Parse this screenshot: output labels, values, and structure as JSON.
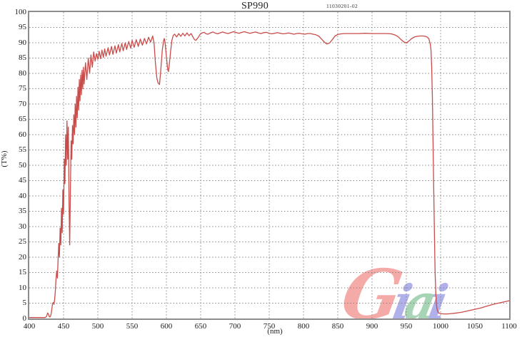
{
  "header": {
    "title": "SP990",
    "serial": "11030201-02"
  },
  "axes": {
    "x": {
      "label": "(nm)",
      "ticks": [
        400,
        450,
        500,
        550,
        600,
        650,
        700,
        750,
        800,
        850,
        900,
        950,
        1000,
        1050,
        1100
      ]
    },
    "y": {
      "label": "(T%)",
      "ticks": [
        0,
        5,
        10,
        15,
        20,
        25,
        30,
        35,
        40,
        45,
        50,
        55,
        60,
        65,
        70,
        75,
        80,
        85,
        90,
        95,
        100
      ]
    }
  },
  "colors": {
    "curve": "#c84c4a",
    "grid": "#7f7f7f",
    "frame": "#8d8d8d"
  },
  "watermark": {
    "text": "Giai",
    "letters": [
      {
        "char": "G",
        "color": "#f2938f"
      },
      {
        "char": "i",
        "color": "#9a9ae6"
      },
      {
        "char": "a",
        "color": "#8fc8a0"
      },
      {
        "char": "i",
        "color": "#9a9ae6"
      }
    ]
  },
  "chart_data": {
    "type": "line",
    "title": "SP990",
    "subtitle": "11030201-02",
    "xlabel": "(nm)",
    "ylabel": "(T%)",
    "xlim": [
      400,
      1100
    ],
    "ylim": [
      0,
      100
    ],
    "x_tick_step": 50,
    "y_tick_step": 5,
    "grid": "dotted, both axes",
    "legend": "none",
    "description": "Shortpass filter SP990 transmission spectrum: ~0% below 430nm, oscillating rise 430-500nm, ripples around 85-93% through visible, flat ~93% 650-930nm with small dips near 833nm and 950nm, steep cut-off at ~990nm to ~0%",
    "series": [
      {
        "name": "transmission",
        "color": "#c84c4a",
        "points": [
          [
            400,
            0.3
          ],
          [
            405,
            0.3
          ],
          [
            410,
            0.3
          ],
          [
            415,
            0.3
          ],
          [
            420,
            0.3
          ],
          [
            423,
            0.3
          ],
          [
            425,
            0.6
          ],
          [
            426,
            1.3
          ],
          [
            427,
            1.8
          ],
          [
            428,
            1.4
          ],
          [
            429,
            0.7
          ],
          [
            430,
            0.5
          ],
          [
            431,
            0.8
          ],
          [
            432,
            1.6
          ],
          [
            433,
            3.2
          ],
          [
            434,
            4.9
          ],
          [
            435,
            5.2
          ],
          [
            436,
            4.6
          ],
          [
            437,
            6.2
          ],
          [
            438,
            9
          ],
          [
            439,
            12.8
          ],
          [
            440,
            15.5
          ],
          [
            441,
            13.2
          ],
          [
            442,
            19
          ],
          [
            443,
            24.5
          ],
          [
            444,
            20
          ],
          [
            445,
            29.5
          ],
          [
            446,
            24
          ],
          [
            447,
            36
          ],
          [
            448,
            28
          ],
          [
            449,
            42
          ],
          [
            450,
            34
          ],
          [
            451,
            52
          ],
          [
            452,
            44
          ],
          [
            453,
            60
          ],
          [
            454,
            50
          ],
          [
            455,
            64.5
          ],
          [
            456,
            52
          ],
          [
            457,
            62.5
          ],
          [
            458,
            38
          ],
          [
            459,
            24
          ],
          [
            460,
            42
          ],
          [
            461,
            58
          ],
          [
            462,
            52
          ],
          [
            463,
            63
          ],
          [
            464,
            57
          ],
          [
            465,
            66.5
          ],
          [
            466,
            60
          ],
          [
            467,
            70
          ],
          [
            468,
            62.5
          ],
          [
            469,
            72.5
          ],
          [
            470,
            65.5
          ],
          [
            471,
            75.5
          ],
          [
            472,
            68
          ],
          [
            473,
            78
          ],
          [
            474,
            71
          ],
          [
            475,
            79.5
          ],
          [
            476,
            73
          ],
          [
            477,
            81
          ],
          [
            478,
            75
          ],
          [
            479,
            82
          ],
          [
            480,
            76.5
          ],
          [
            482,
            83.5
          ],
          [
            484,
            78
          ],
          [
            486,
            85
          ],
          [
            488,
            80
          ],
          [
            490,
            86
          ],
          [
            492,
            82
          ],
          [
            494,
            87
          ],
          [
            496,
            84
          ],
          [
            498,
            86.5
          ],
          [
            500,
            84.6
          ],
          [
            502,
            87.2
          ],
          [
            504,
            84.8
          ],
          [
            506,
            87.6
          ],
          [
            508,
            85.2
          ],
          [
            510,
            88
          ],
          [
            512,
            85.6
          ],
          [
            515,
            88.4
          ],
          [
            517,
            86
          ],
          [
            520,
            88.8
          ],
          [
            522,
            86.2
          ],
          [
            525,
            89
          ],
          [
            527,
            86.6
          ],
          [
            530,
            89.4
          ],
          [
            532,
            87
          ],
          [
            535,
            89.8
          ],
          [
            537,
            87.4
          ],
          [
            540,
            90
          ],
          [
            542,
            87.8
          ],
          [
            545,
            90.4
          ],
          [
            548,
            88.2
          ],
          [
            550,
            90.8
          ],
          [
            553,
            88.5
          ],
          [
            556,
            91
          ],
          [
            559,
            88.8
          ],
          [
            562,
            91.2
          ],
          [
            565,
            89.2
          ],
          [
            568,
            91.4
          ],
          [
            571,
            89.6
          ],
          [
            574,
            91.8
          ],
          [
            577,
            90.2
          ],
          [
            580,
            92.2
          ],
          [
            582,
            90
          ],
          [
            584,
            83.5
          ],
          [
            586,
            78.5
          ],
          [
            588,
            76.8
          ],
          [
            590,
            76.4
          ],
          [
            592,
            81.5
          ],
          [
            594,
            87.5
          ],
          [
            596,
            90.8
          ],
          [
            597,
            91.4
          ],
          [
            598,
            90.2
          ],
          [
            600,
            85.5
          ],
          [
            602,
            81.2
          ],
          [
            603,
            80.6
          ],
          [
            604,
            82.2
          ],
          [
            606,
            87
          ],
          [
            608,
            90.8
          ],
          [
            610,
            92.4
          ],
          [
            612,
            92.8
          ],
          [
            615,
            91.9
          ],
          [
            618,
            93
          ],
          [
            621,
            92.1
          ],
          [
            624,
            93.1
          ],
          [
            627,
            92.2
          ],
          [
            630,
            93.2
          ],
          [
            633,
            92.3
          ],
          [
            636,
            93
          ],
          [
            639,
            91.8
          ],
          [
            641,
            91
          ],
          [
            643,
            90.8
          ],
          [
            646,
            91.6
          ],
          [
            649,
            92.7
          ],
          [
            652,
            93.2
          ],
          [
            655,
            93.4
          ],
          [
            658,
            92.9
          ],
          [
            661,
            92.8
          ],
          [
            664,
            93.2
          ],
          [
            668,
            93.5
          ],
          [
            672,
            93.1
          ],
          [
            675,
            92.9
          ],
          [
            678,
            93.2
          ],
          [
            682,
            93.5
          ],
          [
            686,
            93.2
          ],
          [
            690,
            93.0
          ],
          [
            694,
            93.3
          ],
          [
            698,
            93.6
          ],
          [
            702,
            93.3
          ],
          [
            706,
            93.1
          ],
          [
            710,
            93.4
          ],
          [
            714,
            93.6
          ],
          [
            718,
            93.3
          ],
          [
            722,
            93.1
          ],
          [
            726,
            93.3
          ],
          [
            730,
            93.5
          ],
          [
            734,
            93.2
          ],
          [
            738,
            93.0
          ],
          [
            742,
            93.3
          ],
          [
            746,
            93.4
          ],
          [
            750,
            93.1
          ],
          [
            754,
            92.9
          ],
          [
            758,
            93.1
          ],
          [
            762,
            93.3
          ],
          [
            766,
            93.1
          ],
          [
            770,
            92.9
          ],
          [
            774,
            93.0
          ],
          [
            778,
            93.2
          ],
          [
            782,
            93.0
          ],
          [
            786,
            92.8
          ],
          [
            790,
            93.0
          ],
          [
            794,
            93.1
          ],
          [
            798,
            92.9
          ],
          [
            802,
            92.8
          ],
          [
            806,
            93.0
          ],
          [
            810,
            93.0
          ],
          [
            814,
            92.8
          ],
          [
            818,
            92.6
          ],
          [
            822,
            92.2
          ],
          [
            826,
            91.3
          ],
          [
            830,
            90.3
          ],
          [
            834,
            89.6
          ],
          [
            838,
            89.9
          ],
          [
            842,
            91.0
          ],
          [
            846,
            92.2
          ],
          [
            850,
            92.7
          ],
          [
            855,
            92.9
          ],
          [
            860,
            93.0
          ],
          [
            870,
            93.0
          ],
          [
            880,
            93.0
          ],
          [
            890,
            93.1
          ],
          [
            900,
            93.0
          ],
          [
            910,
            93.0
          ],
          [
            920,
            93.0
          ],
          [
            928,
            92.9
          ],
          [
            934,
            92.5
          ],
          [
            938,
            92.0
          ],
          [
            942,
            91.1
          ],
          [
            946,
            90.3
          ],
          [
            950,
            89.9
          ],
          [
            954,
            90.6
          ],
          [
            958,
            91.4
          ],
          [
            962,
            91.9
          ],
          [
            966,
            92.1
          ],
          [
            970,
            92.2
          ],
          [
            974,
            92.2
          ],
          [
            978,
            92.1
          ],
          [
            981,
            91.8
          ],
          [
            983,
            91.2
          ],
          [
            985,
            89.5
          ],
          [
            986,
            87.5
          ],
          [
            987,
            82
          ],
          [
            988,
            72
          ],
          [
            989,
            58
          ],
          [
            990,
            42
          ],
          [
            991,
            27
          ],
          [
            992,
            15
          ],
          [
            993,
            8
          ],
          [
            994,
            4.5
          ],
          [
            995,
            2.8
          ],
          [
            997,
            1.8
          ],
          [
            1000,
            1.6
          ],
          [
            1005,
            1.5
          ],
          [
            1010,
            1.5
          ],
          [
            1020,
            1.7
          ],
          [
            1030,
            2.0
          ],
          [
            1040,
            2.5
          ],
          [
            1050,
            3.0
          ],
          [
            1060,
            3.5
          ],
          [
            1070,
            4.2
          ],
          [
            1080,
            4.8
          ],
          [
            1090,
            5.3
          ],
          [
            1100,
            5.8
          ]
        ]
      }
    ]
  }
}
